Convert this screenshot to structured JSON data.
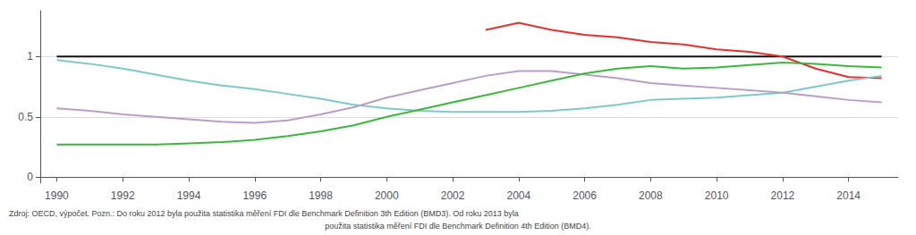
{
  "chart_data": {
    "type": "line",
    "x": [
      1990,
      1991,
      1992,
      1993,
      1994,
      1995,
      1996,
      1997,
      1998,
      1999,
      2000,
      2001,
      2002,
      2003,
      2004,
      2005,
      2006,
      2007,
      2008,
      2009,
      2010,
      2011,
      2012,
      2013,
      2014,
      2015
    ],
    "series": [
      {
        "color": "#111111",
        "values": [
          1.0,
          1.0,
          1.0,
          1.0,
          1.0,
          1.0,
          1.0,
          1.0,
          1.0,
          1.0,
          1.0,
          1.0,
          1.0,
          1.0,
          1.0,
          1.0,
          1.0,
          1.0,
          1.0,
          1.0,
          1.0,
          1.0,
          1.0,
          1.0,
          1.0,
          1.0
        ]
      },
      {
        "color": "#e63030",
        "values": [
          null,
          null,
          null,
          null,
          null,
          null,
          null,
          null,
          null,
          null,
          null,
          null,
          null,
          1.22,
          1.28,
          1.22,
          1.18,
          1.16,
          1.12,
          1.1,
          1.06,
          1.04,
          1.0,
          0.9,
          0.83,
          0.82
        ]
      },
      {
        "color": "#7ec8c8",
        "values": [
          0.97,
          0.94,
          0.9,
          0.85,
          0.8,
          0.76,
          0.73,
          0.69,
          0.65,
          0.6,
          0.57,
          0.55,
          0.54,
          0.54,
          0.54,
          0.55,
          0.57,
          0.6,
          0.64,
          0.65,
          0.66,
          0.68,
          0.7,
          0.75,
          0.8,
          0.84
        ]
      },
      {
        "color": "#b89ec8",
        "values": [
          0.57,
          0.55,
          0.52,
          0.5,
          0.48,
          0.46,
          0.45,
          0.47,
          0.52,
          0.58,
          0.66,
          0.72,
          0.78,
          0.84,
          0.88,
          0.88,
          0.85,
          0.82,
          0.78,
          0.76,
          0.74,
          0.72,
          0.7,
          0.67,
          0.64,
          0.62
        ]
      },
      {
        "color": "#3bb83b",
        "values": [
          0.27,
          0.27,
          0.27,
          0.27,
          0.28,
          0.29,
          0.31,
          0.34,
          0.38,
          0.43,
          0.5,
          0.56,
          0.62,
          0.68,
          0.74,
          0.8,
          0.86,
          0.9,
          0.92,
          0.9,
          0.91,
          0.93,
          0.95,
          0.94,
          0.92,
          0.91
        ]
      }
    ],
    "xlim": [
      1989.5,
      2015.5
    ],
    "xticks": [
      1990,
      1992,
      1994,
      1996,
      1998,
      2000,
      2002,
      2004,
      2006,
      2008,
      2010,
      2012,
      2014
    ],
    "ylim": [
      -0.05,
      1.38
    ],
    "yticks": [
      0,
      0.5,
      1
    ],
    "grid": true,
    "annotations": [
      "Zdroj: OECD, výpočet. Pozn.: Do roku 2012 byla použita statistika měření FDI dle Benchmark Definition 3th Edition (BMD3). Od roku 2013 byla",
      "použita statistika měření FDI dle Benchmark Definition 4th Edition (BMD4)."
    ]
  }
}
